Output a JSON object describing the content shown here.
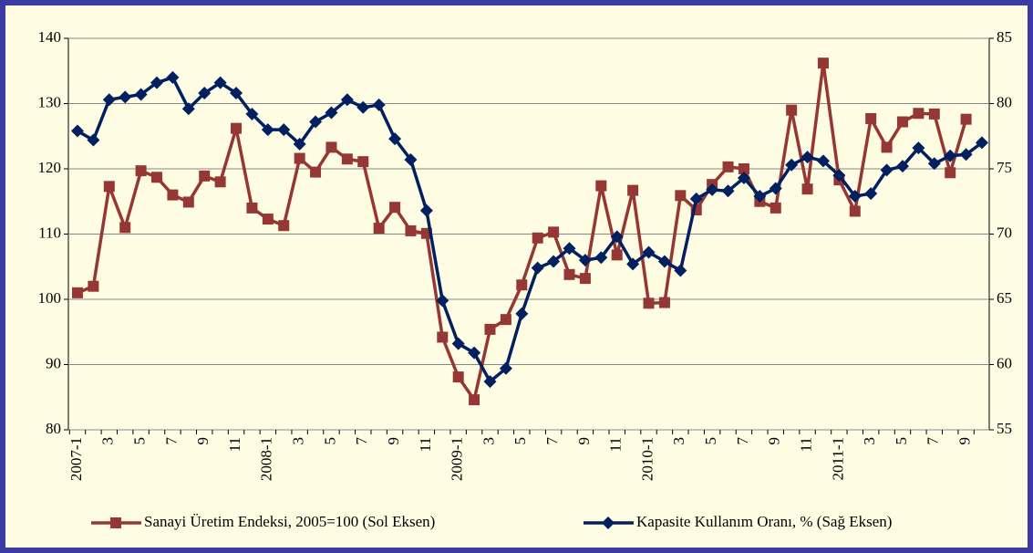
{
  "chart_data": {
    "type": "line",
    "categories": [
      "2007-1",
      null,
      "3",
      null,
      "5",
      null,
      "7",
      null,
      "9",
      null,
      "11",
      null,
      "2008-1",
      null,
      "3",
      null,
      "5",
      null,
      "7",
      null,
      "9",
      null,
      "11",
      null,
      "2009-1",
      null,
      "3",
      null,
      "5",
      null,
      "7",
      null,
      "9",
      null,
      "11",
      null,
      "2010-1",
      null,
      "3",
      null,
      "5",
      null,
      "7",
      null,
      "9",
      null,
      "11",
      null,
      "2011-1",
      null,
      "3",
      null,
      "5",
      null,
      "7",
      null,
      "9",
      null
    ],
    "series": [
      {
        "name": "Sanayi Üretim Endeksi, 2005=100 (Sol Eksen)",
        "color": "#953735",
        "marker": "square",
        "values": [
          101,
          102,
          117.3,
          111,
          119.7,
          118.7,
          116,
          114.9,
          118.9,
          118,
          126.2,
          114,
          112.3,
          111.3,
          121.6,
          119.5,
          123.3,
          121.5,
          121.1,
          110.9,
          114.1,
          110.5,
          110.1,
          94.2,
          88.1,
          84.6,
          95.4,
          96.9,
          102.2,
          109.4,
          110.3,
          103.8,
          103.2,
          117.4,
          106.8,
          116.7,
          99.4,
          99.5,
          115.9,
          113.7,
          117.6,
          120.3,
          120,
          115,
          114,
          129,
          116.9,
          136.2,
          118.3,
          113.5,
          127.7,
          123.3,
          127.2,
          128.5,
          128.4,
          119.4,
          127.6,
          null
        ]
      },
      {
        "name": "Kapasite Kullanım Oranı, % (Sağ Eksen)",
        "color": "#002060",
        "marker": "diamond",
        "axis": "y2",
        "values": [
          77.9,
          77.2,
          80.3,
          80.5,
          80.7,
          81.6,
          82,
          79.6,
          80.8,
          81.6,
          80.8,
          79.2,
          78,
          78,
          76.9,
          78.6,
          79.3,
          80.3,
          79.7,
          79.9,
          77.3,
          75.7,
          71.8,
          64.9,
          61.6,
          60.9,
          58.7,
          59.7,
          63.9,
          67.4,
          67.9,
          68.9,
          68,
          68.2,
          69.8,
          67.7,
          68.6,
          67.9,
          67.2,
          72.7,
          73.4,
          73.3,
          74.3,
          72.9,
          73.5,
          75.3,
          75.9,
          75.6,
          74.5,
          72.9,
          73.1,
          74.9,
          75.2,
          76.6,
          75.4,
          76,
          76.1,
          77
        ]
      }
    ],
    "ylim": [
      80,
      140
    ],
    "yticks": [
      80,
      90,
      100,
      110,
      120,
      130,
      140
    ],
    "y2lim": [
      55,
      85
    ],
    "y2ticks": [
      55,
      60,
      65,
      70,
      75,
      80,
      85
    ],
    "grid": true,
    "legend": "bottom"
  }
}
